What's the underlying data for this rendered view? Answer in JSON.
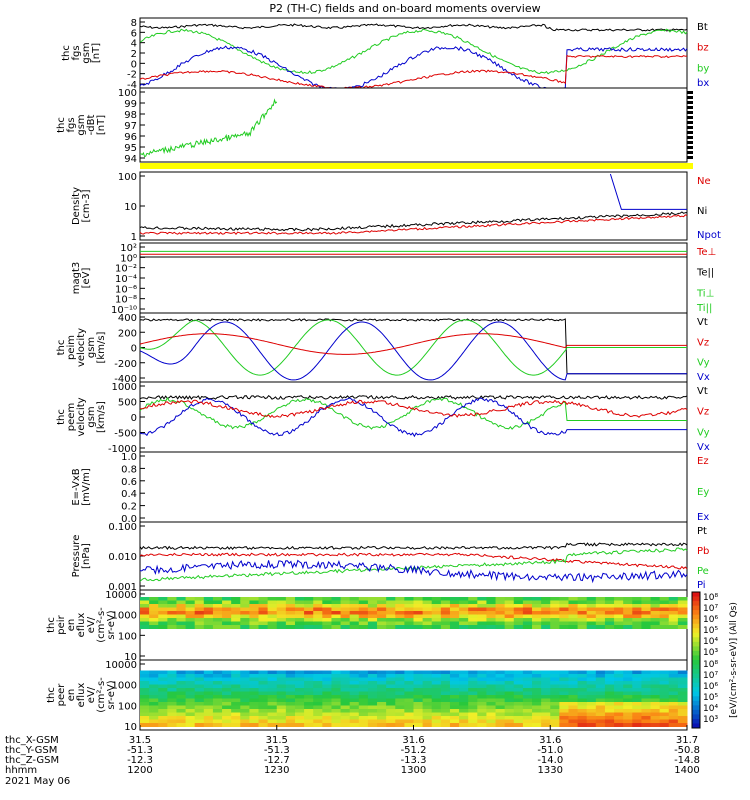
{
  "title": "P2 (TH-C) fields and on-board moments overview",
  "colors": {
    "black": "#000000",
    "red": "#dd0000",
    "green": "#22cc22",
    "blue": "#0000cc",
    "yellow": "#ffff00"
  },
  "chart_data": [
    {
      "type": "line",
      "name": "fgs",
      "ylabel_lines": [
        "thc",
        "fgs",
        "gsm",
        "[nT]"
      ],
      "yticks": [
        "8",
        "6",
        "4",
        "2",
        "0",
        "-2",
        "-4"
      ],
      "legend": [
        {
          "label": "Bt",
          "color": "#000000"
        },
        {
          "label": "bz",
          "color": "#dd0000"
        },
        {
          "label": "by",
          "color": "#22cc22"
        },
        {
          "label": "bx",
          "color": "#0000cc"
        }
      ]
    },
    {
      "type": "line",
      "name": "fgs-detrend",
      "ylabel_lines": [
        "thc",
        "fgs",
        "gsm",
        "-dBt",
        "[nT]"
      ],
      "yticks": [
        "100",
        "99",
        "98",
        "97",
        "96",
        "95",
        "94"
      ],
      "legend": []
    },
    {
      "type": "line",
      "name": "density",
      "ylabel_lines": [
        "Density",
        "[cm-3]"
      ],
      "yticks": [
        "100",
        "10",
        "1"
      ],
      "legend": [
        {
          "label": "Ne",
          "color": "#dd0000"
        },
        {
          "label": "Ni",
          "color": "#000000"
        },
        {
          "label": "Npot",
          "color": "#0000cc"
        }
      ]
    },
    {
      "type": "line",
      "name": "temperature",
      "ylabel_lines": [
        "magt3",
        "[eV]"
      ],
      "yticks": [
        "10²",
        "10⁰",
        "10⁻²",
        "10⁻⁴",
        "10⁻⁶",
        "10⁻⁸",
        "10⁻¹⁰"
      ],
      "legend": [
        {
          "label": "Te⊥",
          "color": "#dd0000"
        },
        {
          "label": "Te||",
          "color": "#000000"
        },
        {
          "label": "Ti⊥",
          "color": "#22cc22"
        },
        {
          "label": "Ti||",
          "color": "#22cc22"
        }
      ]
    },
    {
      "type": "line",
      "name": "peim-velocity",
      "ylabel_lines": [
        "thc",
        "peim",
        "velocity",
        "gsm",
        "[km/s]"
      ],
      "yticks": [
        "400",
        "200",
        "0",
        "-200",
        "-400"
      ],
      "legend": [
        {
          "label": "Vt",
          "color": "#000000"
        },
        {
          "label": "Vz",
          "color": "#dd0000"
        },
        {
          "label": "Vy",
          "color": "#22cc22"
        },
        {
          "label": "Vx",
          "color": "#0000cc"
        }
      ]
    },
    {
      "type": "line",
      "name": "peem-velocity",
      "ylabel_lines": [
        "thc",
        "peem",
        "velocity",
        "gsm",
        "[km/s]"
      ],
      "yticks": [
        "1000",
        "500",
        "0",
        "-500",
        "-1000"
      ],
      "legend": [
        {
          "label": "Vt",
          "color": "#000000"
        },
        {
          "label": "Vz",
          "color": "#dd0000"
        },
        {
          "label": "Vy",
          "color": "#22cc22"
        },
        {
          "label": "Vx",
          "color": "#0000cc"
        }
      ]
    },
    {
      "type": "line",
      "name": "efield",
      "ylabel_lines": [
        "E=-VxB",
        "[mV/m]"
      ],
      "yticks": [
        "1.0",
        "0.8",
        "0.6",
        "0.4",
        "0.2",
        "0.0"
      ],
      "legend": [
        {
          "label": "Ez",
          "color": "#dd0000"
        },
        {
          "label": "Ey",
          "color": "#22cc22"
        },
        {
          "label": "Ex",
          "color": "#0000cc"
        }
      ]
    },
    {
      "type": "line",
      "name": "pressure",
      "ylabel_lines": [
        "Pressure",
        "[nPa]"
      ],
      "yticks": [
        "0.100",
        "0.010",
        "0.001"
      ],
      "legend": [
        {
          "label": "Pt",
          "color": "#000000"
        },
        {
          "label": "Pb",
          "color": "#dd0000"
        },
        {
          "label": "Pe",
          "color": "#22cc22"
        },
        {
          "label": "Pi",
          "color": "#0000cc"
        }
      ]
    },
    {
      "type": "heatmap",
      "name": "peir-spectrogram",
      "ylabel_lines": [
        "thc",
        "peir",
        "en",
        "eflux",
        "eV/",
        "(cm²-s-",
        "sr-eV)"
      ],
      "yticks": [
        "10000",
        "1000",
        "100",
        "10"
      ],
      "legend": []
    },
    {
      "type": "heatmap",
      "name": "peer-spectrogram",
      "ylabel_lines": [
        "thc",
        "peer",
        "en",
        "eflux",
        "eV/",
        "(cm²-s-",
        "sr-eV)"
      ],
      "yticks": [
        "10000",
        "1000",
        "100",
        "10"
      ],
      "legend": []
    }
  ],
  "colorbar": {
    "ticks_top": [
      "10⁸",
      "10⁷",
      "10⁶",
      "10⁵",
      "10⁴",
      "10³"
    ],
    "ticks_bottom": [
      "10⁸",
      "10⁷",
      "10⁶",
      "10⁵",
      "10⁴",
      "10³"
    ],
    "label": "[eV/(cm²-s-sr-eV)] (All Qs)"
  },
  "x_axis": {
    "tick_labels": [
      "31.5",
      "31.5",
      "31.6",
      "31.6",
      "31.7"
    ],
    "rows": [
      {
        "label": "thc_X-GSM",
        "values": [
          "31.5",
          "31.5",
          "31.6",
          "31.6",
          "31.7"
        ]
      },
      {
        "label": "thc_Y-GSM",
        "values": [
          "-51.3",
          "-51.3",
          "-51.2",
          "-51.0",
          "-50.8"
        ]
      },
      {
        "label": "thc_Z-GSM",
        "values": [
          "-12.3",
          "-12.7",
          "-13.3",
          "-14.0",
          "-14.8"
        ]
      },
      {
        "label": "hhmm",
        "values": [
          "1200",
          "1230",
          "1300",
          "1330",
          "1400"
        ]
      }
    ],
    "date": "2021 May 06"
  }
}
